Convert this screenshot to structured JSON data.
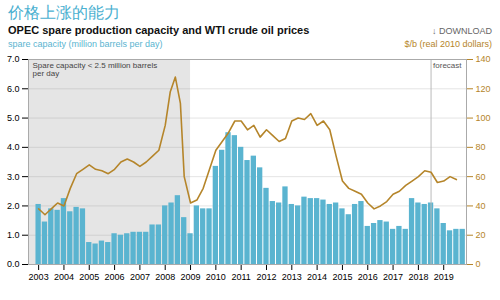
{
  "chart_data": {
    "type": "bar",
    "title": "价格上涨的能力",
    "subtitle": "OPEC spare production capacity and WTI crude oil prices",
    "ylabel": "spare capacity (million barrels per day)",
    "y2label": "$/b (real 2010 dollars)",
    "annotations": [
      {
        "text": "↓ DOWNLOAD"
      },
      {
        "text": "Spare capacity < 2.5 million barrels per day",
        "x1": 2002.6,
        "x2": 2009.0,
        "color": "#e5e5e5"
      },
      {
        "text": "forecast",
        "x": 2018.5
      }
    ],
    "xlim": [
      2002.6,
      2019.9
    ],
    "xticks": [
      2003,
      2004,
      2005,
      2006,
      2007,
      2008,
      2009,
      2010,
      2011,
      2012,
      2013,
      2014,
      2015,
      2016,
      2017,
      2018,
      2019
    ],
    "ylim": [
      0,
      7
    ],
    "yticks": [
      0,
      1,
      2,
      3,
      4,
      5,
      6,
      7
    ],
    "y2lim": [
      0,
      140
    ],
    "y2ticks": [
      0,
      20,
      40,
      60,
      80,
      100,
      120,
      140
    ],
    "grid": true,
    "series": [
      {
        "type": "bar",
        "color": "#5ab4d0",
        "x": [
          2003.0,
          2003.25,
          2003.5,
          2003.75,
          2004.0,
          2004.25,
          2004.5,
          2004.75,
          2005.0,
          2005.25,
          2005.5,
          2005.75,
          2006.0,
          2006.25,
          2006.5,
          2006.75,
          2007.0,
          2007.25,
          2007.5,
          2007.75,
          2008.0,
          2008.25,
          2008.5,
          2008.75,
          2009.0,
          2009.25,
          2009.5,
          2009.75,
          2010.0,
          2010.25,
          2010.5,
          2010.75,
          2011.0,
          2011.25,
          2011.5,
          2011.75,
          2012.0,
          2012.25,
          2012.5,
          2012.75,
          2013.0,
          2013.25,
          2013.5,
          2013.75,
          2014.0,
          2014.25,
          2014.5,
          2014.75,
          2015.0,
          2015.25,
          2015.5,
          2015.75,
          2016.0,
          2016.25,
          2016.5,
          2016.75,
          2017.0,
          2017.25,
          2017.5,
          2017.75,
          2018.0,
          2018.25,
          2018.5,
          2018.75,
          2019.0,
          2019.25,
          2019.5,
          2019.75
        ],
        "values": [
          2.05,
          1.45,
          1.9,
          1.85,
          2.25,
          1.8,
          1.95,
          1.9,
          0.75,
          0.7,
          0.8,
          0.75,
          1.05,
          1.0,
          1.05,
          1.1,
          1.1,
          1.1,
          1.35,
          1.35,
          2.0,
          2.1,
          2.35,
          1.6,
          1.05,
          2.0,
          1.9,
          1.9,
          3.35,
          3.9,
          4.5,
          4.4,
          4.0,
          3.55,
          3.7,
          3.3,
          2.6,
          2.15,
          2.1,
          2.65,
          2.05,
          2.0,
          2.3,
          2.25,
          2.25,
          2.2,
          2.05,
          2.1,
          1.9,
          1.7,
          2.05,
          2.15,
          1.3,
          1.4,
          1.5,
          1.45,
          1.2,
          1.3,
          1.2,
          2.25,
          2.1,
          2.05,
          2.1,
          1.9,
          1.4,
          1.15,
          1.2,
          1.2
        ]
      },
      {
        "type": "line",
        "color": "#b5852a",
        "axis": "y2",
        "x": [
          2003.0,
          2003.125,
          2003.25,
          2003.375,
          2003.5,
          2003.625,
          2003.75,
          2003.875,
          2004.0,
          2004.25,
          2004.5,
          2004.75,
          2005.0,
          2005.25,
          2005.5,
          2005.75,
          2006.0,
          2006.25,
          2006.5,
          2006.75,
          2007.0,
          2007.25,
          2007.5,
          2007.75,
          2008.0,
          2008.2,
          2008.4,
          2008.6,
          2008.75,
          2009.0,
          2009.25,
          2009.5,
          2009.75,
          2010.0,
          2010.25,
          2010.5,
          2010.75,
          2011.0,
          2011.25,
          2011.5,
          2011.75,
          2012.0,
          2012.25,
          2012.5,
          2012.75,
          2013.0,
          2013.25,
          2013.5,
          2013.75,
          2014.0,
          2014.25,
          2014.5,
          2014.75,
          2015.0,
          2015.25,
          2015.5,
          2015.75,
          2016.0,
          2016.25,
          2016.5,
          2016.75,
          2017.0,
          2017.25,
          2017.5,
          2017.75,
          2018.0,
          2018.25,
          2018.5,
          2018.75,
          2019.0,
          2019.25,
          2019.5
        ],
        "values": [
          38,
          36,
          34,
          36,
          38,
          40,
          42,
          41,
          40,
          52,
          62,
          65,
          68,
          65,
          64,
          62,
          65,
          70,
          72,
          70,
          67,
          70,
          74,
          78,
          95,
          118,
          128,
          110,
          60,
          42,
          44,
          52,
          65,
          78,
          84,
          90,
          98,
          98,
          92,
          95,
          87,
          92,
          88,
          84,
          86,
          98,
          100,
          99,
          103,
          95,
          98,
          92,
          74,
          57,
          52,
          50,
          48,
          42,
          38,
          40,
          43,
          48,
          50,
          54,
          57,
          60,
          64,
          63,
          56,
          57,
          60,
          58
        ]
      }
    ]
  }
}
